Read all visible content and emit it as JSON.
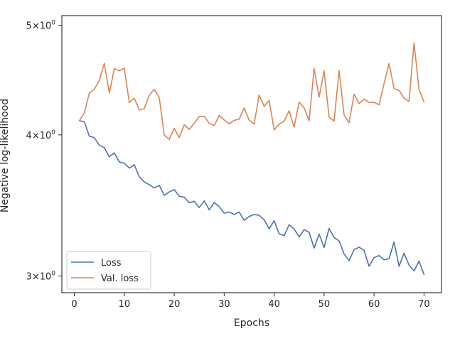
{
  "chart_data": {
    "type": "line",
    "title": "",
    "xlabel": "Epochs",
    "ylabel": "Negative log-likelihood",
    "xlim": [
      -2.5,
      73.5
    ],
    "ylim": [
      2.9,
      5.1
    ],
    "yscale": "log",
    "grid": false,
    "legend_position": "lower-left",
    "x_ticks": [
      {
        "value": 0,
        "label": "0"
      },
      {
        "value": 10,
        "label": "10"
      },
      {
        "value": 20,
        "label": "20"
      },
      {
        "value": 30,
        "label": "30"
      },
      {
        "value": 40,
        "label": "40"
      },
      {
        "value": 50,
        "label": "50"
      },
      {
        "value": 60,
        "label": "60"
      },
      {
        "value": 70,
        "label": "70"
      }
    ],
    "y_ticks": [
      {
        "value": 3,
        "base": "3",
        "exp": "0"
      },
      {
        "value": 4,
        "base": "4",
        "exp": "0"
      },
      {
        "value": 5,
        "base": "5",
        "exp": "0"
      }
    ],
    "x": [
      1,
      2,
      3,
      4,
      5,
      6,
      7,
      8,
      9,
      10,
      11,
      12,
      13,
      14,
      15,
      16,
      17,
      18,
      19,
      20,
      21,
      22,
      23,
      24,
      25,
      26,
      27,
      28,
      29,
      30,
      31,
      32,
      33,
      34,
      35,
      36,
      37,
      38,
      39,
      40,
      41,
      42,
      43,
      44,
      45,
      46,
      47,
      48,
      49,
      50,
      51,
      52,
      53,
      54,
      55,
      56,
      57,
      58,
      59,
      60,
      61,
      62,
      63,
      64,
      65,
      66,
      67,
      68,
      69,
      70
    ],
    "series": [
      {
        "name": "Loss",
        "color": "#4c72b0",
        "values": [
          4.117,
          4.109,
          3.99,
          3.977,
          3.917,
          3.897,
          3.825,
          3.855,
          3.785,
          3.775,
          3.738,
          3.764,
          3.673,
          3.634,
          3.614,
          3.59,
          3.609,
          3.536,
          3.561,
          3.578,
          3.53,
          3.523,
          3.484,
          3.494,
          3.449,
          3.497,
          3.433,
          3.485,
          3.456,
          3.41,
          3.419,
          3.401,
          3.418,
          3.36,
          3.387,
          3.401,
          3.395,
          3.365,
          3.303,
          3.358,
          3.27,
          3.257,
          3.331,
          3.302,
          3.249,
          3.298,
          3.28,
          3.176,
          3.268,
          3.18,
          3.306,
          3.245,
          3.223,
          3.138,
          3.096,
          3.165,
          3.182,
          3.161,
          3.06,
          3.115,
          3.128,
          3.101,
          3.108,
          3.216,
          3.06,
          3.143,
          3.068,
          3.031,
          3.093,
          3.01
        ]
      },
      {
        "name": "Val. loss",
        "color": "#dd8452",
        "values": [
          4.117,
          4.184,
          4.354,
          4.39,
          4.47,
          4.627,
          4.356,
          4.578,
          4.557,
          4.584,
          4.272,
          4.311,
          4.207,
          4.219,
          4.339,
          4.388,
          4.316,
          3.999,
          3.964,
          4.053,
          3.979,
          4.083,
          4.045,
          4.096,
          4.152,
          4.154,
          4.096,
          4.076,
          4.162,
          4.123,
          4.091,
          4.12,
          4.13,
          4.226,
          4.121,
          4.09,
          4.338,
          4.24,
          4.29,
          4.039,
          4.088,
          4.114,
          4.201,
          4.063,
          4.276,
          4.226,
          4.117,
          4.579,
          4.319,
          4.559,
          4.148,
          4.114,
          4.56,
          4.165,
          4.099,
          4.346,
          4.264,
          4.302,
          4.274,
          4.275,
          4.253,
          4.44,
          4.626,
          4.396,
          4.38,
          4.31,
          4.283,
          4.823,
          4.387,
          4.277
        ]
      }
    ]
  }
}
